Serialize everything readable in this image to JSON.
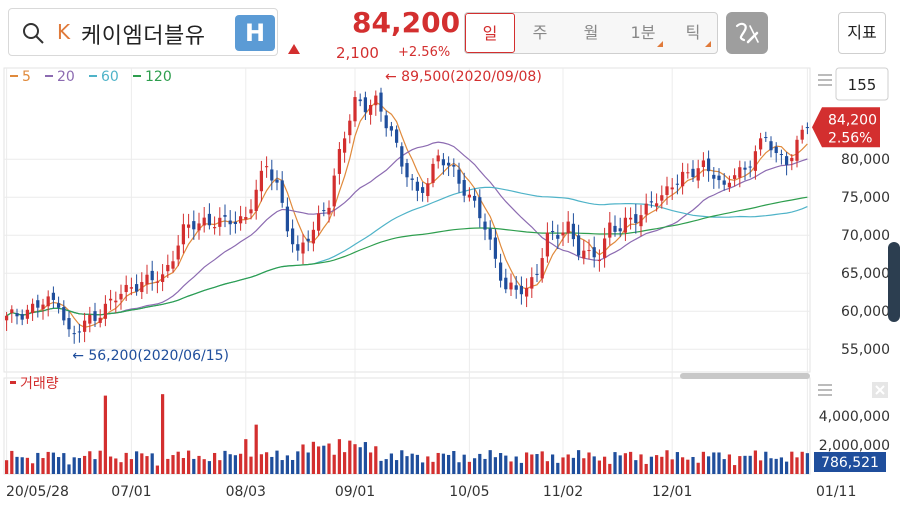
{
  "header": {
    "market_letter": "K",
    "stock_name": "케이엠더블유",
    "h_button_label": "H",
    "price": "84,200",
    "change": "2,100",
    "change_pct": "+2.56%",
    "tabs": [
      {
        "label": "일",
        "active": true,
        "corner": false
      },
      {
        "label": "주",
        "active": false,
        "corner": false
      },
      {
        "label": "월",
        "active": false,
        "corner": false
      },
      {
        "label": "1분",
        "active": false,
        "corner": true
      },
      {
        "label": "틱",
        "active": false,
        "corner": true
      }
    ],
    "indicator_label": "지표"
  },
  "colors": {
    "up": "#d32f2f",
    "down": "#1f4e9c",
    "ma5": "#e08a3c",
    "ma20": "#8c6bb1",
    "ma60": "#4fb3c8",
    "ma120": "#2e9e4e"
  },
  "chart_data": {
    "type": "candlestick",
    "ma_legend": [
      {
        "label": "5",
        "color": "#e08a3c"
      },
      {
        "label": "20",
        "color": "#8c6bb1"
      },
      {
        "label": "60",
        "color": "#4fb3c8"
      },
      {
        "label": "120",
        "color": "#2e9e4e"
      }
    ],
    "candle_count_label": "155",
    "price_axis": {
      "ticks": [
        "80,000",
        "75,000",
        "70,000",
        "65,000",
        "60,000",
        "55,000"
      ],
      "tick_values": [
        80000,
        75000,
        70000,
        65000,
        60000,
        55000
      ],
      "range": [
        52000,
        92000
      ]
    },
    "current_price_label": "84,200",
    "current_pct_label": "2.56%",
    "current_price": 84200,
    "annotations": [
      {
        "label": "89,500(2020/09/08)",
        "value": 89500,
        "date": "2020/09/08"
      },
      {
        "label": "56,200(2020/06/15)",
        "value": 56200,
        "date": "2020/06/15"
      }
    ],
    "x_ticks": [
      {
        "label": "20/05/28",
        "index": 0
      },
      {
        "label": "07/01",
        "index": 24
      },
      {
        "label": "08/03",
        "index": 46
      },
      {
        "label": "09/01",
        "index": 67
      },
      {
        "label": "10/05",
        "index": 89
      },
      {
        "label": "11/02",
        "index": 107
      },
      {
        "label": "12/01",
        "index": 128
      },
      {
        "label": "01/11",
        "index": 154
      }
    ],
    "volume_label": "거래량",
    "volume_axis": {
      "ticks": [
        "4,000,000",
        "2,000,000"
      ],
      "tick_values": [
        4000000,
        2000000
      ],
      "range": [
        0,
        6200000
      ]
    },
    "current_volume_label": "786,521",
    "close_anchors": [
      [
        0,
        59000
      ],
      [
        5,
        60500
      ],
      [
        10,
        61500
      ],
      [
        12,
        57000
      ],
      [
        13,
        56800
      ],
      [
        16,
        59000
      ],
      [
        20,
        61000
      ],
      [
        24,
        63500
      ],
      [
        28,
        64000
      ],
      [
        30,
        64500
      ],
      [
        34,
        70500
      ],
      [
        38,
        72000
      ],
      [
        42,
        71500
      ],
      [
        46,
        72500
      ],
      [
        50,
        79000
      ],
      [
        52,
        77000
      ],
      [
        54,
        71000
      ],
      [
        56,
        67000
      ],
      [
        58,
        70000
      ],
      [
        60,
        72500
      ],
      [
        62,
        74000
      ],
      [
        64,
        80500
      ],
      [
        66,
        86000
      ],
      [
        67,
        88000
      ],
      [
        69,
        86500
      ],
      [
        71,
        87500
      ],
      [
        74,
        84000
      ],
      [
        76,
        79000
      ],
      [
        79,
        75500
      ],
      [
        81,
        77500
      ],
      [
        83,
        80000
      ],
      [
        86,
        78500
      ],
      [
        89,
        75000
      ],
      [
        92,
        71000
      ],
      [
        94,
        67000
      ],
      [
        96,
        63000
      ],
      [
        98,
        62500
      ],
      [
        100,
        63000
      ],
      [
        102,
        65500
      ],
      [
        104,
        69500
      ],
      [
        106,
        70000
      ],
      [
        108,
        71500
      ],
      [
        110,
        68000
      ],
      [
        112,
        67000
      ],
      [
        114,
        67500
      ],
      [
        116,
        71500
      ],
      [
        118,
        70500
      ],
      [
        120,
        72000
      ],
      [
        122,
        73000
      ],
      [
        124,
        74500
      ],
      [
        126,
        74500
      ],
      [
        128,
        77000
      ],
      [
        130,
        78000
      ],
      [
        132,
        78000
      ],
      [
        134,
        79000
      ],
      [
        136,
        78500
      ],
      [
        138,
        76000
      ],
      [
        140,
        78000
      ],
      [
        142,
        78500
      ],
      [
        144,
        81500
      ],
      [
        146,
        82500
      ],
      [
        148,
        80500
      ],
      [
        150,
        80000
      ],
      [
        152,
        82000
      ],
      [
        154,
        84200
      ]
    ]
  }
}
